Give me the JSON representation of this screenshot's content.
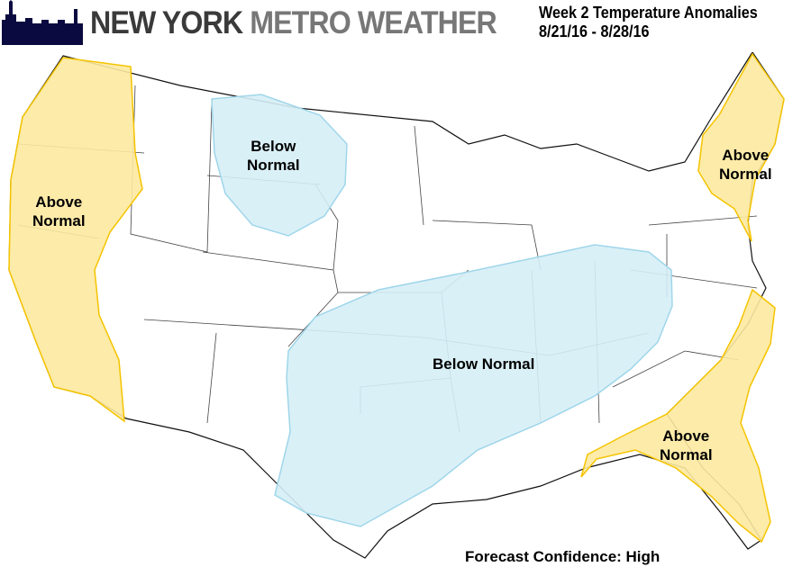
{
  "header": {
    "brand_part1": "NEW YORK",
    "brand_part2": "METRO WEATHER",
    "title": "Week 2 Temperature Anomalies",
    "date_range": "8/21/16 - 8/28/16"
  },
  "colors": {
    "above_normal": "#fde9a0",
    "above_border": "#f5c400",
    "below_normal": "#d6eef6",
    "below_border": "#9fd6ea",
    "logo": "#0a0a40"
  },
  "regions": [
    {
      "id": "west",
      "line1": "Above",
      "line2": "Normal",
      "category": "above"
    },
    {
      "id": "north-plains",
      "line1": "Below",
      "line2": "Normal",
      "category": "below"
    },
    {
      "id": "central",
      "line1": "Below Normal",
      "line2": "",
      "category": "below"
    },
    {
      "id": "northeast",
      "line1": "Above",
      "line2": "Normal",
      "category": "above"
    },
    {
      "id": "southeast",
      "line1": "Above",
      "line2": "Normal",
      "category": "above"
    }
  ],
  "footer": {
    "confidence": "Forecast Confidence: High"
  }
}
